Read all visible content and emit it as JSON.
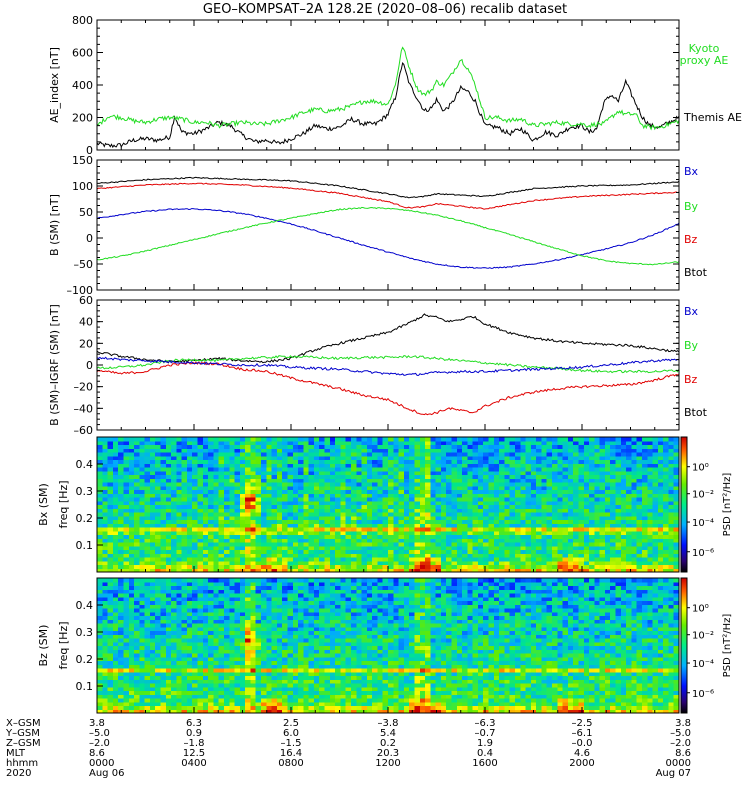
{
  "title": "GEO–KOMPSAT–2A 128.2E (2020–08–06) recalib dataset",
  "colors": {
    "black": "#000000",
    "red": "#e00000",
    "green": "#22dd22",
    "blue": "#0000cc"
  },
  "chart_data": [
    {
      "type": "line",
      "panel": "ae",
      "ylabel": "AE_index [nT]",
      "ylim": [
        0,
        800
      ],
      "yticks": [
        "0",
        "200",
        "400",
        "600",
        "800"
      ],
      "legend": [
        {
          "name": "Kyoto proxy AE",
          "color": "green"
        },
        {
          "name": "Themis AE",
          "color": "black"
        }
      ],
      "series": [
        {
          "name": "Themis AE",
          "color": "black",
          "x": [
            0,
            0.5,
            1,
            1.5,
            2,
            2.5,
            3,
            3.2,
            3.5,
            4,
            4.5,
            5,
            5.5,
            6,
            6.5,
            7,
            7.5,
            8,
            8.5,
            9,
            9.5,
            10,
            10.5,
            11,
            11.5,
            12,
            12.3,
            12.6,
            12.9,
            13.2,
            13.5,
            13.8,
            14,
            14.3,
            14.6,
            15,
            15.3,
            15.6,
            16,
            16.5,
            17,
            17.5,
            18,
            18.5,
            19,
            19.5,
            20,
            20.3,
            20.6,
            20.9,
            21.2,
            21.5,
            21.8,
            22.2,
            22.5,
            22.8,
            23.2,
            23.6,
            24
          ],
          "y": [
            40,
            25,
            30,
            60,
            70,
            60,
            80,
            210,
            110,
            100,
            130,
            170,
            150,
            90,
            50,
            60,
            40,
            70,
            100,
            150,
            130,
            140,
            190,
            160,
            160,
            220,
            320,
            540,
            400,
            320,
            240,
            260,
            310,
            240,
            280,
            380,
            360,
            300,
            150,
            140,
            100,
            130,
            60,
            110,
            90,
            140,
            150,
            110,
            130,
            290,
            340,
            300,
            420,
            290,
            200,
            150,
            140,
            170,
            200
          ]
        },
        {
          "name": "Kyoto proxy AE",
          "color": "green",
          "x": [
            0,
            0.5,
            1,
            1.5,
            2,
            2.5,
            3,
            3.5,
            4,
            4.5,
            5,
            5.5,
            6,
            6.5,
            7,
            7.5,
            8,
            8.5,
            9,
            9.5,
            10,
            10.5,
            11,
            11.5,
            12,
            12.3,
            12.6,
            12.9,
            13.2,
            13.5,
            13.8,
            14,
            14.3,
            14.6,
            15,
            15.3,
            15.6,
            16,
            16.5,
            17,
            17.5,
            18,
            18.5,
            19,
            19.5,
            20,
            20.3,
            20.6,
            20.9,
            21.2,
            21.5,
            21.8,
            22.2,
            22.5,
            22.8,
            23.2,
            23.6,
            24
          ],
          "y": [
            150,
            210,
            200,
            180,
            170,
            190,
            200,
            190,
            170,
            170,
            150,
            160,
            170,
            160,
            160,
            180,
            200,
            230,
            250,
            240,
            250,
            270,
            300,
            300,
            280,
            400,
            640,
            500,
            380,
            340,
            370,
            420,
            400,
            460,
            560,
            500,
            400,
            200,
            200,
            180,
            190,
            150,
            160,
            170,
            160,
            160,
            150,
            160,
            160,
            200,
            240,
            220,
            220,
            150,
            140,
            140,
            160,
            180
          ]
        }
      ]
    },
    {
      "type": "line",
      "panel": "b",
      "ylabel": "B (SM) [nT]",
      "ylim": [
        -100,
        150
      ],
      "yticks": [
        "–100",
        "–50",
        "0",
        "50",
        "100",
        "150"
      ],
      "legend": [
        {
          "name": "Bx",
          "color": "blue"
        },
        {
          "name": "By",
          "color": "green"
        },
        {
          "name": "Bz",
          "color": "red"
        },
        {
          "name": "Btot",
          "color": "black"
        }
      ],
      "series": [
        {
          "name": "Btot",
          "color": "black",
          "x": [
            0,
            2,
            4,
            6,
            8,
            10,
            12,
            12.8,
            13.5,
            14,
            16,
            18,
            20,
            22,
            24
          ],
          "y": [
            105,
            112,
            116,
            113,
            110,
            100,
            85,
            78,
            80,
            85,
            80,
            95,
            100,
            102,
            108
          ]
        },
        {
          "name": "Bz",
          "color": "red",
          "x": [
            0,
            2,
            4,
            6,
            8,
            10,
            12,
            12.8,
            13.5,
            14,
            16,
            18,
            20,
            22,
            24
          ],
          "y": [
            95,
            102,
            105,
            102,
            96,
            86,
            70,
            58,
            60,
            66,
            56,
            72,
            80,
            84,
            88
          ]
        },
        {
          "name": "Bx",
          "color": "blue",
          "x": [
            0,
            1,
            2,
            3,
            4,
            5,
            6,
            7,
            8,
            9,
            10,
            11,
            12,
            13,
            14,
            15,
            16,
            17,
            18,
            19,
            20,
            21,
            22,
            23,
            24
          ],
          "y": [
            38,
            45,
            51,
            55,
            56,
            53,
            47,
            38,
            27,
            14,
            0,
            -14,
            -27,
            -40,
            -50,
            -56,
            -58,
            -56,
            -50,
            -42,
            -32,
            -21,
            -9,
            7,
            28
          ]
        },
        {
          "name": "By",
          "color": "green",
          "x": [
            0,
            1,
            2,
            3,
            4,
            5,
            6,
            7,
            8,
            9,
            10,
            11,
            12,
            13,
            14,
            15,
            16,
            17,
            18,
            19,
            20,
            21,
            22,
            23,
            24
          ],
          "y": [
            -42,
            -35,
            -25,
            -14,
            -3,
            8,
            19,
            29,
            38,
            47,
            55,
            58,
            57,
            52,
            44,
            33,
            20,
            7,
            -7,
            -21,
            -34,
            -44,
            -49,
            -51,
            -46
          ]
        }
      ]
    },
    {
      "type": "line",
      "panel": "bdiff",
      "ylabel": "B (SM)–IGRF (SM) [nT]",
      "ylim": [
        -60,
        60
      ],
      "yticks": [
        "–60",
        "–40",
        "–20",
        "0",
        "20",
        "40",
        "60"
      ],
      "legend": [
        {
          "name": "Bx",
          "color": "blue"
        },
        {
          "name": "By",
          "color": "green"
        },
        {
          "name": "Bz",
          "color": "red"
        },
        {
          "name": "Btot",
          "color": "black"
        }
      ],
      "series": [
        {
          "name": "Btot",
          "color": "black",
          "x": [
            0,
            1,
            2,
            3,
            4,
            5,
            6,
            7,
            8,
            9,
            10,
            11,
            12,
            12.8,
            13.5,
            14,
            14.5,
            15,
            15.5,
            16,
            17,
            18,
            19,
            20,
            21,
            22,
            23,
            24
          ],
          "y": [
            12,
            8,
            5,
            3,
            4,
            6,
            4,
            3,
            6,
            14,
            20,
            25,
            30,
            38,
            46,
            44,
            40,
            42,
            45,
            38,
            30,
            25,
            22,
            20,
            19,
            18,
            15,
            12
          ]
        },
        {
          "name": "Bz",
          "color": "red",
          "x": [
            0,
            1,
            2,
            3,
            4,
            5,
            6,
            7,
            8,
            9,
            10,
            11,
            12,
            12.8,
            13.5,
            14,
            14.5,
            15,
            15.5,
            16,
            17,
            18,
            19,
            20,
            21,
            22,
            23,
            24
          ],
          "y": [
            -5,
            -8,
            -6,
            0,
            2,
            1,
            -4,
            -6,
            -12,
            -17,
            -22,
            -28,
            -32,
            -40,
            -46,
            -44,
            -40,
            -42,
            -44,
            -38,
            -30,
            -25,
            -22,
            -20,
            -19,
            -18,
            -14,
            -8
          ]
        },
        {
          "name": "By",
          "color": "green",
          "x": [
            0,
            1,
            2,
            3,
            4,
            5,
            6,
            7,
            8,
            9,
            10,
            11,
            12,
            13,
            14,
            15,
            16,
            17,
            18,
            19,
            20,
            21,
            22,
            23,
            24
          ],
          "y": [
            -3,
            -2,
            0,
            4,
            5,
            4,
            6,
            7,
            8,
            7,
            6,
            7,
            7,
            8,
            6,
            4,
            2,
            0,
            -2,
            -3,
            -5,
            -6,
            -6,
            -6,
            -5
          ]
        },
        {
          "name": "Bx",
          "color": "blue",
          "x": [
            0,
            1,
            2,
            3,
            4,
            5,
            6,
            7,
            8,
            9,
            10,
            11,
            12,
            13,
            14,
            15,
            16,
            17,
            18,
            19,
            20,
            21,
            22,
            23,
            24
          ],
          "y": [
            7,
            5,
            4,
            3,
            2,
            1,
            0,
            0,
            -2,
            -3,
            -4,
            -6,
            -8,
            -9,
            -7,
            -6,
            -6,
            -5,
            -4,
            -3,
            -2,
            0,
            2,
            4,
            5
          ]
        }
      ]
    },
    {
      "type": "heatmap",
      "panel": "bx_psd",
      "ylabel": "Bx (SM) freq [Hz]",
      "ylim": [
        0,
        0.5
      ],
      "yticks": [
        "0.1",
        "0.2",
        "0.3",
        "0.4"
      ],
      "colorbar_label": "PSD [nT²/Hz]",
      "colorbar_ticks": [
        "10⁰",
        "10⁻²",
        "10⁻⁴",
        "10⁻⁶"
      ]
    },
    {
      "type": "heatmap",
      "panel": "bz_psd",
      "ylabel": "Bz (SM) freq [Hz]",
      "ylim": [
        0,
        0.5
      ],
      "yticks": [
        "0.1",
        "0.2",
        "0.3",
        "0.4"
      ],
      "colorbar_label": "PSD [nT²/Hz]",
      "colorbar_ticks": [
        "10⁰",
        "10⁻²",
        "10⁻⁴",
        "10⁻⁶"
      ]
    }
  ],
  "ephemeris": {
    "row_labels": [
      "X–GSM",
      "Y–GSM",
      "Z–GSM",
      "MLT",
      "hhmm",
      "2020"
    ],
    "columns": [
      [
        "3.8",
        "–5.0",
        "–2.0",
        "8.6",
        "0000",
        "Aug 06"
      ],
      [
        "6.3",
        "0.9",
        "–1.8",
        "12.5",
        "0400",
        ""
      ],
      [
        "2.5",
        "6.0",
        "–1.5",
        "16.4",
        "0800",
        ""
      ],
      [
        "–3.8",
        "5.4",
        "0.2",
        "20.3",
        "1200",
        ""
      ],
      [
        "–6.3",
        "–0.7",
        "1.9",
        "0.4",
        "1600",
        ""
      ],
      [
        "–2.5",
        "–6.1",
        "–0.0",
        "4.6",
        "2000",
        ""
      ],
      [
        "3.8",
        "–5.0",
        "–2.0",
        "8.6",
        "0000",
        "Aug 07"
      ]
    ]
  }
}
